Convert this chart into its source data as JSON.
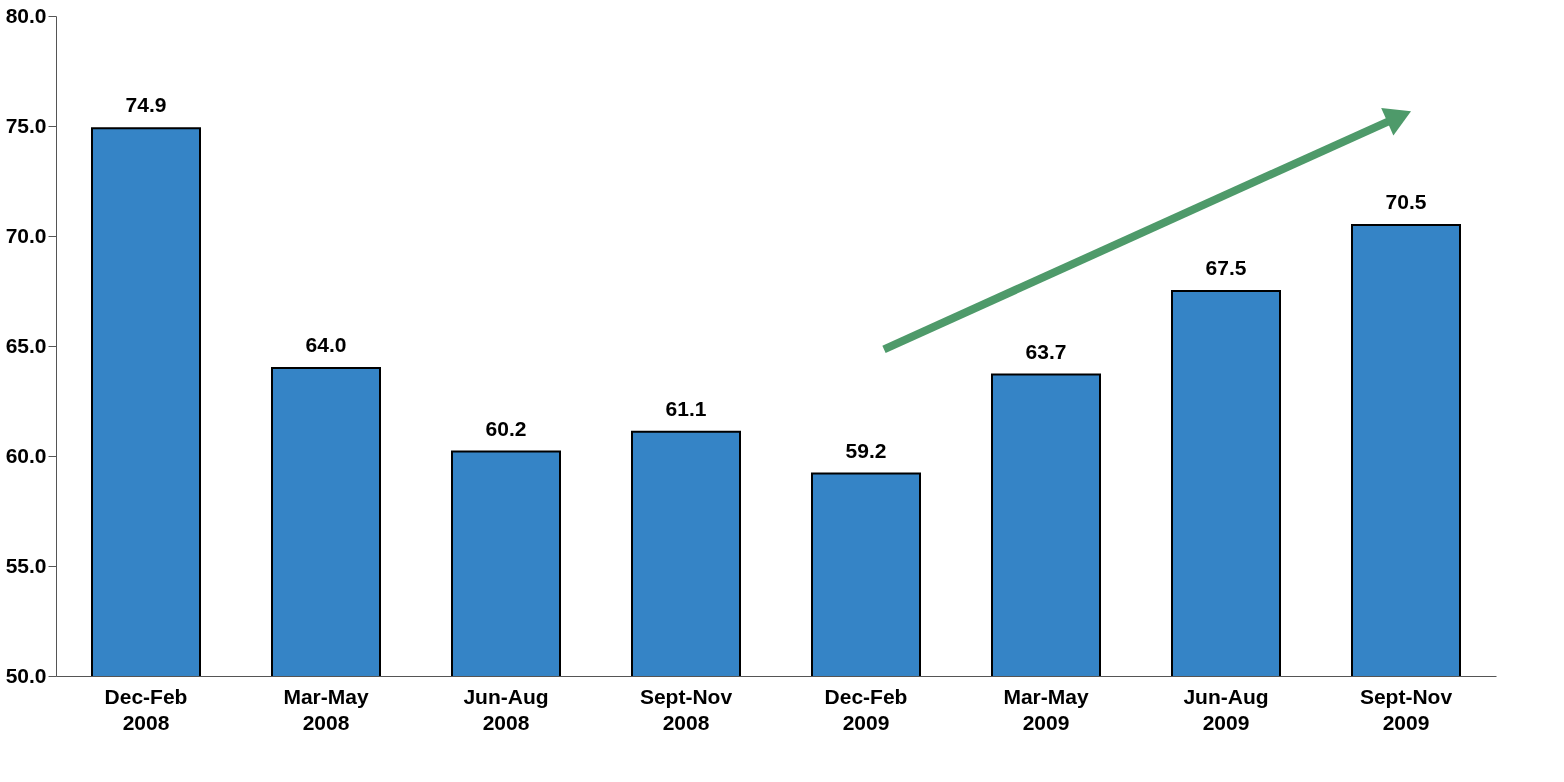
{
  "chart_data": {
    "type": "bar",
    "categories": [
      "Dec-Feb\n2008",
      "Mar-May\n2008",
      "Jun-Aug\n2008",
      "Sept-Nov\n2008",
      "Dec-Feb\n2009",
      "Mar-May\n2009",
      "Jun-Aug\n2009",
      "Sept-Nov\n2009"
    ],
    "values": [
      74.9,
      64.0,
      60.2,
      61.1,
      59.2,
      63.7,
      67.5,
      70.5
    ],
    "color": "#3584c6",
    "ylim": [
      50,
      80
    ],
    "yticks": [
      {
        "value": 50,
        "label": "50.0"
      },
      {
        "value": 55,
        "label": "55.0"
      },
      {
        "value": 60,
        "label": "60.0"
      },
      {
        "value": 65,
        "label": "65.0"
      },
      {
        "value": 70,
        "label": "70.0"
      },
      {
        "value": 75,
        "label": "75.0"
      },
      {
        "value": 80,
        "label": "80.0"
      }
    ],
    "value_labels": [
      "74.9",
      "64.0",
      "60.2",
      "61.1",
      "59.2",
      "63.7",
      "67.5",
      "70.5"
    ],
    "grid": false
  }
}
